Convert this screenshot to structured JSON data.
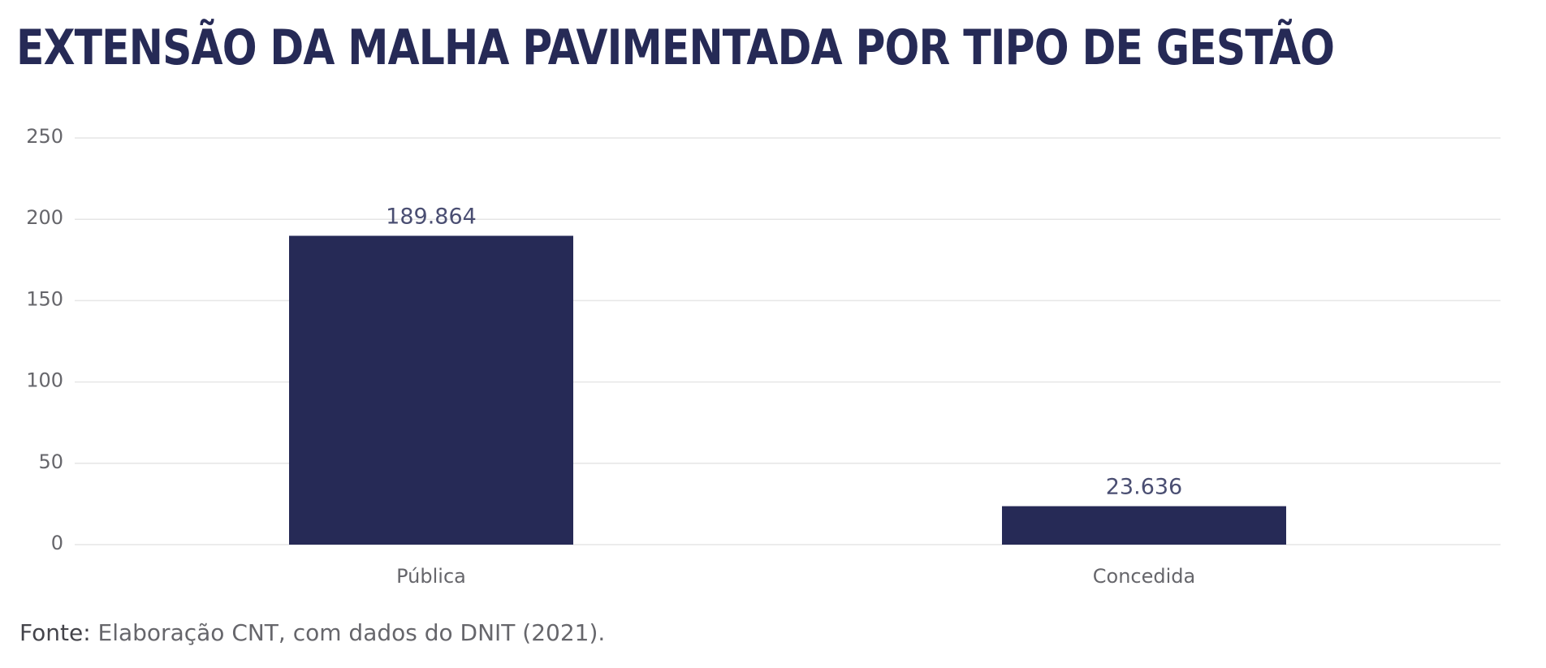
{
  "chart_data": {
    "type": "bar",
    "title": "EXTENSÃO DA MALHA PAVIMENTADA POR TIPO DE GESTÃO",
    "categories": [
      "Pública",
      "Concedida"
    ],
    "values": [
      189.864,
      23.636
    ],
    "value_labels": [
      "189.864",
      "23.636"
    ],
    "xlabel": "",
    "ylabel": "",
    "ylim": [
      0,
      250
    ],
    "yticks": [
      0,
      50,
      100,
      150,
      200,
      250
    ],
    "grid": true,
    "bar_color": "#262a56",
    "grid_color": "#e6e6e6"
  },
  "source": {
    "label": "Fonte:",
    "text": " Elaboração CNT, com dados do DNIT (2021)."
  }
}
